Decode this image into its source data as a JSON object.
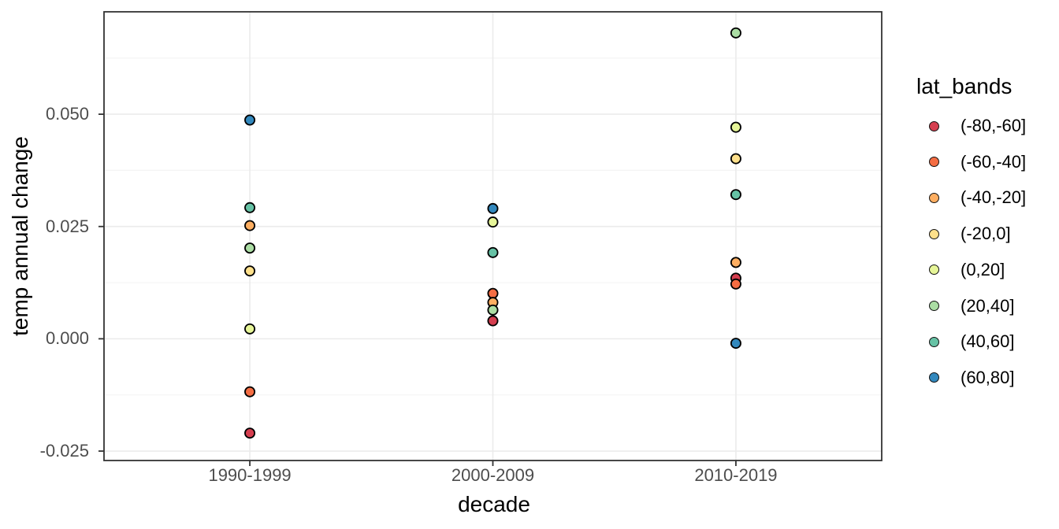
{
  "chart_data": {
    "type": "scatter",
    "title": "",
    "xlabel": "decade",
    "ylabel": "temp annual change",
    "legend_title": "lat_bands",
    "legend_position": "right",
    "categories": [
      "1990-1999",
      "2000-2009",
      "2010-2019"
    ],
    "series": [
      {
        "name": "(-80,-60]",
        "color": "#d53e4f",
        "values": [
          -0.021,
          0.004,
          0.0135
        ]
      },
      {
        "name": "(-60,-40]",
        "color": "#f46d43",
        "values": [
          -0.0118,
          0.0101,
          0.0122
        ]
      },
      {
        "name": "(-40,-20]",
        "color": "#fdae61",
        "values": [
          0.0252,
          0.0081,
          0.017
        ]
      },
      {
        "name": "(-20,0]",
        "color": "#fee08b",
        "values": [
          0.0151,
          null,
          0.0401
        ]
      },
      {
        "name": "(0,20]",
        "color": "#e6f598",
        "values": [
          0.0022,
          0.026,
          0.0471
        ]
      },
      {
        "name": "(20,40]",
        "color": "#abdda4",
        "values": [
          0.0202,
          0.0064,
          0.0681
        ]
      },
      {
        "name": "(40,60]",
        "color": "#66c2a5",
        "values": [
          0.0292,
          0.0192,
          0.0321
        ]
      },
      {
        "name": "(60,80]",
        "color": "#3288bd",
        "values": [
          0.0487,
          0.029,
          -0.001
        ]
      }
    ],
    "y_ticks": [
      -0.025,
      0.0,
      0.025,
      0.05
    ],
    "y_tick_labels": [
      "-0.025",
      "0.000",
      "0.025",
      "0.050"
    ],
    "y_minor_gridlines": [
      -0.0125,
      0.0125,
      0.0375,
      0.0625
    ],
    "ylim": [
      -0.0271,
      0.0728
    ],
    "grid": true,
    "colors": {
      "grid_major": "#ebebeb",
      "grid_minor": "#f4f4f4",
      "panel_border": "#333333",
      "tick_mark": "#333333",
      "tick_label": "#4d4d4d",
      "point_stroke": "#000000",
      "background": "#ffffff"
    }
  }
}
